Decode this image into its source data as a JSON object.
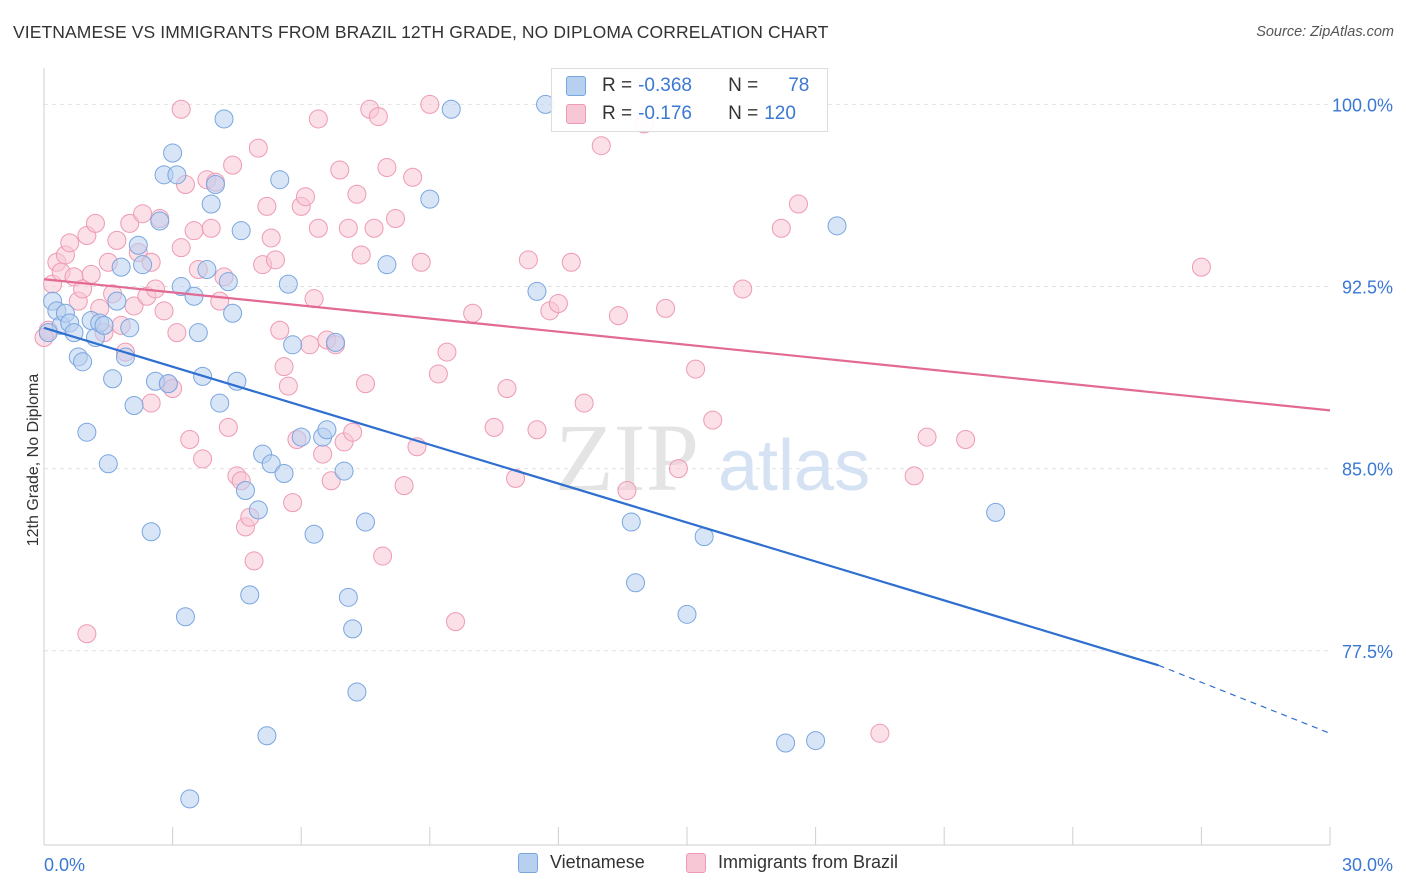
{
  "title": "VIETNAMESE VS IMMIGRANTS FROM BRAZIL 12TH GRADE, NO DIPLOMA CORRELATION CHART",
  "source": "Source: ZipAtlas.com",
  "watermark": {
    "zip": "ZIP",
    "atlas": "atlas"
  },
  "colors": {
    "vietnamese_fill": "#b8d0f0",
    "vietnamese_stroke": "#7aa6e0",
    "vietnamese_line": "#2f6fd0",
    "brazil_fill": "#f8c7d6",
    "brazil_stroke": "#ee9ab4",
    "brazil_line": "#e26a93",
    "tick_label": "#3a78d4",
    "grid": "#e2e2e2"
  },
  "legend_top": {
    "rows": [
      {
        "r_label": "R =",
        "r_value": "-0.368",
        "n_label": "N =",
        "n_value": "78"
      },
      {
        "r_label": "R =",
        "r_value": "-0.176",
        "n_label": "N =",
        "n_value": "120"
      }
    ]
  },
  "legend_bottom": [
    "Vietnamese",
    "Immigrants from Brazil"
  ],
  "chart_data": {
    "type": "scatter",
    "title": "VIETNAMESE VS IMMIGRANTS FROM BRAZIL 12TH GRADE, NO DIPLOMA CORRELATION CHART",
    "xlabel": "",
    "ylabel": "12th Grade, No Diploma",
    "xlim": [
      0,
      30
    ],
    "ylim": [
      69.5,
      101.5
    ],
    "x_tick_labels": [
      {
        "value": 0,
        "label": "0.0%"
      },
      {
        "value": 30,
        "label": "30.0%"
      }
    ],
    "y_tick_labels": [
      {
        "value": 100,
        "label": "100.0%"
      },
      {
        "value": 92.5,
        "label": "92.5%"
      },
      {
        "value": 85,
        "label": "85.0%"
      },
      {
        "value": 77.5,
        "label": "77.5%"
      }
    ],
    "grid": true,
    "legend_position": "top-center",
    "series": [
      {
        "name": "Vietnamese",
        "r": -0.368,
        "n": 78,
        "trend": {
          "x_start": 0,
          "y_start": 90.8,
          "x_solid_end": 26.0,
          "y_solid_end": 76.9,
          "x_dashed_end": 30,
          "y_dashed_end": 74.1
        },
        "points": [
          [
            0.2,
            91.9
          ],
          [
            0.3,
            91.5
          ],
          [
            0.4,
            90.9
          ],
          [
            0.5,
            91.4
          ],
          [
            0.6,
            91.0
          ],
          [
            0.7,
            90.6
          ],
          [
            0.8,
            89.6
          ],
          [
            0.9,
            89.4
          ],
          [
            1.0,
            86.5
          ],
          [
            1.1,
            91.1
          ],
          [
            1.2,
            90.4
          ],
          [
            1.3,
            91.0
          ],
          [
            1.4,
            90.9
          ],
          [
            1.5,
            85.2
          ],
          [
            1.6,
            88.7
          ],
          [
            1.7,
            91.9
          ],
          [
            1.8,
            93.3
          ],
          [
            1.9,
            89.6
          ],
          [
            2.0,
            90.8
          ],
          [
            2.1,
            87.6
          ],
          [
            2.2,
            94.2
          ],
          [
            2.3,
            93.4
          ],
          [
            2.5,
            82.4
          ],
          [
            2.6,
            88.6
          ],
          [
            2.8,
            97.1
          ],
          [
            2.9,
            88.5
          ],
          [
            3.0,
            98.0
          ],
          [
            3.1,
            97.1
          ],
          [
            3.2,
            92.5
          ],
          [
            3.3,
            78.9
          ],
          [
            3.4,
            71.4
          ],
          [
            3.5,
            92.1
          ],
          [
            3.6,
            90.6
          ],
          [
            3.7,
            88.8
          ],
          [
            3.8,
            93.2
          ],
          [
            4.0,
            96.7
          ],
          [
            4.1,
            87.7
          ],
          [
            4.2,
            99.4
          ],
          [
            4.3,
            92.7
          ],
          [
            4.4,
            91.4
          ],
          [
            4.5,
            88.6
          ],
          [
            4.6,
            94.8
          ],
          [
            4.7,
            84.1
          ],
          [
            4.8,
            79.8
          ],
          [
            5.0,
            83.3
          ],
          [
            5.1,
            85.6
          ],
          [
            5.2,
            74.0
          ],
          [
            5.3,
            85.2
          ],
          [
            5.5,
            96.9
          ],
          [
            5.6,
            84.8
          ],
          [
            5.7,
            92.6
          ],
          [
            5.8,
            90.1
          ],
          [
            6.0,
            86.3
          ],
          [
            6.3,
            82.3
          ],
          [
            6.5,
            86.3
          ],
          [
            6.6,
            86.6
          ],
          [
            6.8,
            90.2
          ],
          [
            7.0,
            84.9
          ],
          [
            7.1,
            79.7
          ],
          [
            7.2,
            78.4
          ],
          [
            7.3,
            75.8
          ],
          [
            7.5,
            82.8
          ],
          [
            8.0,
            93.4
          ],
          [
            9.0,
            96.1
          ],
          [
            9.5,
            99.8
          ],
          [
            11.5,
            92.3
          ],
          [
            11.7,
            100.0
          ],
          [
            13.7,
            82.8
          ],
          [
            13.8,
            80.3
          ],
          [
            15.0,
            79.0
          ],
          [
            15.4,
            82.2
          ],
          [
            17.3,
            73.7
          ],
          [
            18.0,
            73.8
          ],
          [
            18.5,
            95.0
          ],
          [
            22.2,
            83.2
          ],
          [
            0.1,
            90.6
          ],
          [
            2.7,
            95.2
          ],
          [
            3.9,
            95.9
          ]
        ]
      },
      {
        "name": "Immigrants from Brazil",
        "r": -0.176,
        "n": 120,
        "trend": {
          "x_start": 0,
          "y_start": 92.8,
          "x_solid_end": 30,
          "y_solid_end": 87.4
        },
        "points": [
          [
            0.1,
            90.7
          ],
          [
            0.2,
            92.6
          ],
          [
            0.3,
            93.5
          ],
          [
            0.4,
            93.1
          ],
          [
            0.5,
            93.8
          ],
          [
            0.6,
            94.3
          ],
          [
            0.7,
            92.9
          ],
          [
            0.8,
            91.9
          ],
          [
            0.9,
            92.4
          ],
          [
            1.0,
            94.6
          ],
          [
            1.1,
            93.0
          ],
          [
            1.2,
            95.1
          ],
          [
            1.3,
            91.6
          ],
          [
            1.4,
            90.6
          ],
          [
            1.5,
            93.5
          ],
          [
            1.6,
            92.2
          ],
          [
            1.7,
            94.4
          ],
          [
            1.8,
            90.9
          ],
          [
            1.9,
            89.8
          ],
          [
            2.0,
            95.1
          ],
          [
            2.1,
            91.7
          ],
          [
            2.2,
            93.9
          ],
          [
            2.3,
            95.5
          ],
          [
            2.4,
            92.1
          ],
          [
            2.5,
            93.5
          ],
          [
            2.6,
            92.4
          ],
          [
            2.7,
            95.3
          ],
          [
            2.8,
            91.5
          ],
          [
            2.9,
            88.5
          ],
          [
            3.0,
            88.3
          ],
          [
            3.1,
            90.6
          ],
          [
            3.2,
            94.1
          ],
          [
            3.3,
            96.7
          ],
          [
            3.4,
            86.2
          ],
          [
            3.5,
            94.8
          ],
          [
            3.6,
            93.2
          ],
          [
            3.7,
            85.4
          ],
          [
            3.8,
            96.9
          ],
          [
            3.9,
            94.9
          ],
          [
            4.0,
            96.8
          ],
          [
            4.1,
            91.9
          ],
          [
            4.2,
            92.9
          ],
          [
            4.3,
            86.7
          ],
          [
            4.4,
            97.5
          ],
          [
            4.5,
            84.7
          ],
          [
            4.6,
            84.5
          ],
          [
            4.7,
            82.6
          ],
          [
            4.8,
            83.0
          ],
          [
            4.9,
            81.2
          ],
          [
            5.0,
            98.2
          ],
          [
            5.1,
            93.4
          ],
          [
            5.2,
            95.8
          ],
          [
            5.3,
            94.5
          ],
          [
            5.4,
            93.6
          ],
          [
            5.5,
            90.7
          ],
          [
            5.6,
            89.2
          ],
          [
            5.7,
            88.4
          ],
          [
            5.8,
            83.6
          ],
          [
            5.9,
            86.2
          ],
          [
            6.0,
            95.8
          ],
          [
            6.1,
            96.2
          ],
          [
            6.2,
            90.1
          ],
          [
            6.3,
            92.0
          ],
          [
            6.4,
            94.9
          ],
          [
            6.5,
            85.6
          ],
          [
            6.6,
            90.3
          ],
          [
            6.7,
            84.5
          ],
          [
            6.8,
            90.1
          ],
          [
            6.9,
            97.3
          ],
          [
            7.0,
            86.1
          ],
          [
            7.1,
            94.9
          ],
          [
            7.2,
            86.5
          ],
          [
            7.3,
            96.3
          ],
          [
            7.4,
            93.8
          ],
          [
            7.5,
            88.5
          ],
          [
            7.6,
            99.8
          ],
          [
            7.7,
            94.9
          ],
          [
            7.8,
            99.5
          ],
          [
            7.9,
            81.4
          ],
          [
            8.0,
            97.4
          ],
          [
            8.2,
            95.3
          ],
          [
            8.4,
            84.3
          ],
          [
            8.6,
            97.0
          ],
          [
            8.8,
            93.5
          ],
          [
            9.0,
            100.0
          ],
          [
            9.2,
            88.9
          ],
          [
            9.4,
            89.8
          ],
          [
            9.6,
            78.7
          ],
          [
            10.0,
            91.4
          ],
          [
            10.5,
            86.7
          ],
          [
            10.8,
            88.3
          ],
          [
            11.0,
            84.6
          ],
          [
            11.3,
            93.6
          ],
          [
            11.5,
            86.6
          ],
          [
            11.8,
            91.5
          ],
          [
            12.0,
            91.8
          ],
          [
            12.3,
            93.5
          ],
          [
            12.6,
            87.7
          ],
          [
            13.0,
            98.3
          ],
          [
            13.4,
            91.3
          ],
          [
            13.6,
            84.1
          ],
          [
            14.0,
            99.2
          ],
          [
            14.5,
            91.6
          ],
          [
            14.8,
            85.0
          ],
          [
            15.2,
            89.1
          ],
          [
            15.6,
            87.0
          ],
          [
            16.3,
            92.4
          ],
          [
            17.2,
            94.9
          ],
          [
            17.6,
            95.9
          ],
          [
            19.5,
            74.1
          ],
          [
            20.3,
            84.7
          ],
          [
            20.6,
            86.3
          ],
          [
            21.5,
            86.2
          ],
          [
            27.0,
            93.3
          ],
          [
            0.0,
            90.4
          ],
          [
            1.0,
            78.2
          ],
          [
            2.5,
            87.7
          ],
          [
            3.2,
            99.8
          ],
          [
            6.4,
            99.4
          ],
          [
            8.7,
            85.9
          ]
        ]
      }
    ]
  }
}
